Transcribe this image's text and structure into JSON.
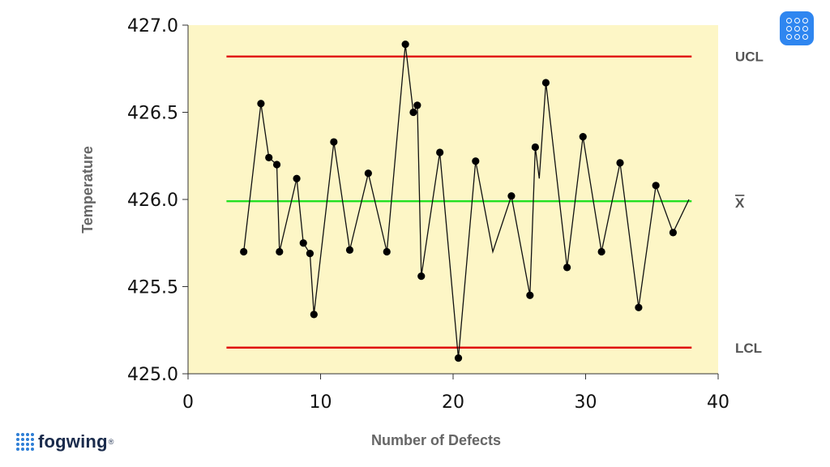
{
  "chart_data": {
    "type": "line",
    "title": "",
    "xlabel": "Number of Defects",
    "ylabel": "Temperature",
    "xlim": [
      0,
      40
    ],
    "ylim": [
      425.0,
      427.0
    ],
    "x_ticks": [
      "0",
      "10",
      "20",
      "30",
      "40"
    ],
    "y_ticks": [
      "425.0",
      "425.5",
      "426.0",
      "426.5",
      "427.0"
    ],
    "grid": false,
    "series": [
      {
        "x": [
          4.2,
          5.5,
          6.1,
          6.7,
          6.9,
          8.2,
          8.7,
          9.2,
          9.5,
          11.0,
          12.2,
          13.6,
          15.0,
          16.4,
          17.0,
          17.3,
          17.6,
          19.0,
          20.4,
          21.7,
          23.0,
          24.4,
          25.8,
          26.2,
          26.5,
          27.0,
          28.6,
          29.8,
          31.2,
          32.6,
          34.0,
          35.3,
          36.6,
          37.8
        ],
        "y": [
          425.7,
          426.55,
          426.24,
          426.2,
          425.7,
          426.12,
          425.75,
          425.69,
          425.34,
          426.33,
          425.71,
          426.15,
          425.7,
          426.89,
          426.5,
          426.54,
          425.56,
          426.27,
          425.09,
          426.22,
          425.7,
          426.02,
          425.45,
          426.3,
          426.12,
          426.67,
          425.61,
          426.36,
          425.7,
          426.21,
          425.38,
          426.08,
          425.81,
          426.0
        ],
        "markers": [
          true,
          true,
          true,
          true,
          true,
          true,
          true,
          true,
          true,
          true,
          true,
          true,
          true,
          true,
          true,
          true,
          true,
          true,
          true,
          true,
          false,
          true,
          true,
          true,
          false,
          true,
          true,
          true,
          true,
          true,
          true,
          true,
          true,
          false
        ]
      }
    ],
    "control_lines": [
      {
        "label": "UCL",
        "value": 426.82,
        "x_range": [
          2.9,
          38.0
        ],
        "color": "#e01010"
      },
      {
        "label": "X",
        "value": 425.99,
        "x_range": [
          2.9,
          38.0
        ],
        "color": "#22e022"
      },
      {
        "label": "LCL",
        "value": 425.15,
        "x_range": [
          2.9,
          38.0
        ],
        "color": "#e01010"
      }
    ],
    "plot_background": "#fdf6c6",
    "line_color": "#111111",
    "marker_color": "#000000"
  },
  "branding": {
    "name": "fogwing",
    "reg_mark": "®",
    "icon": "fogwing-logo-icon",
    "accent": "#2f7fd6"
  },
  "app_badge": {
    "icon": "grid-app-icon",
    "color": "#2f86f0"
  }
}
